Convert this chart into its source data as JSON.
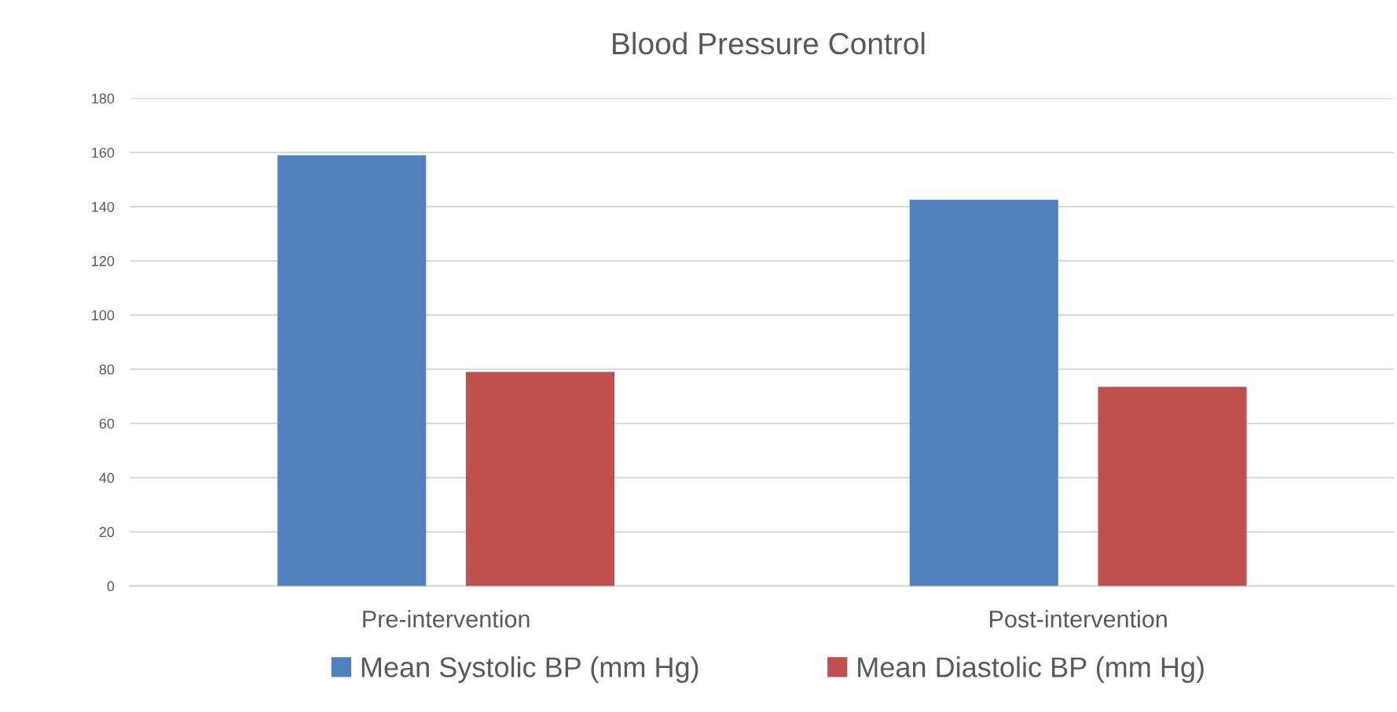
{
  "chart_data": {
    "type": "bar",
    "title": "Blood Pressure Control",
    "categories": [
      "Pre-intervention",
      "Post-intervention"
    ],
    "series": [
      {
        "name": "Mean Systolic BP (mm Hg)",
        "color": "#4f81bd",
        "values": [
          159,
          142.5
        ]
      },
      {
        "name": "Mean Diastolic BP (mm Hg)",
        "color": "#c0504d",
        "values": [
          79,
          73.5
        ]
      }
    ],
    "ylim": [
      0,
      180
    ],
    "yticks": [
      0,
      20,
      40,
      60,
      80,
      100,
      120,
      140,
      160,
      180
    ],
    "grid": "y",
    "legend": "bottom"
  }
}
